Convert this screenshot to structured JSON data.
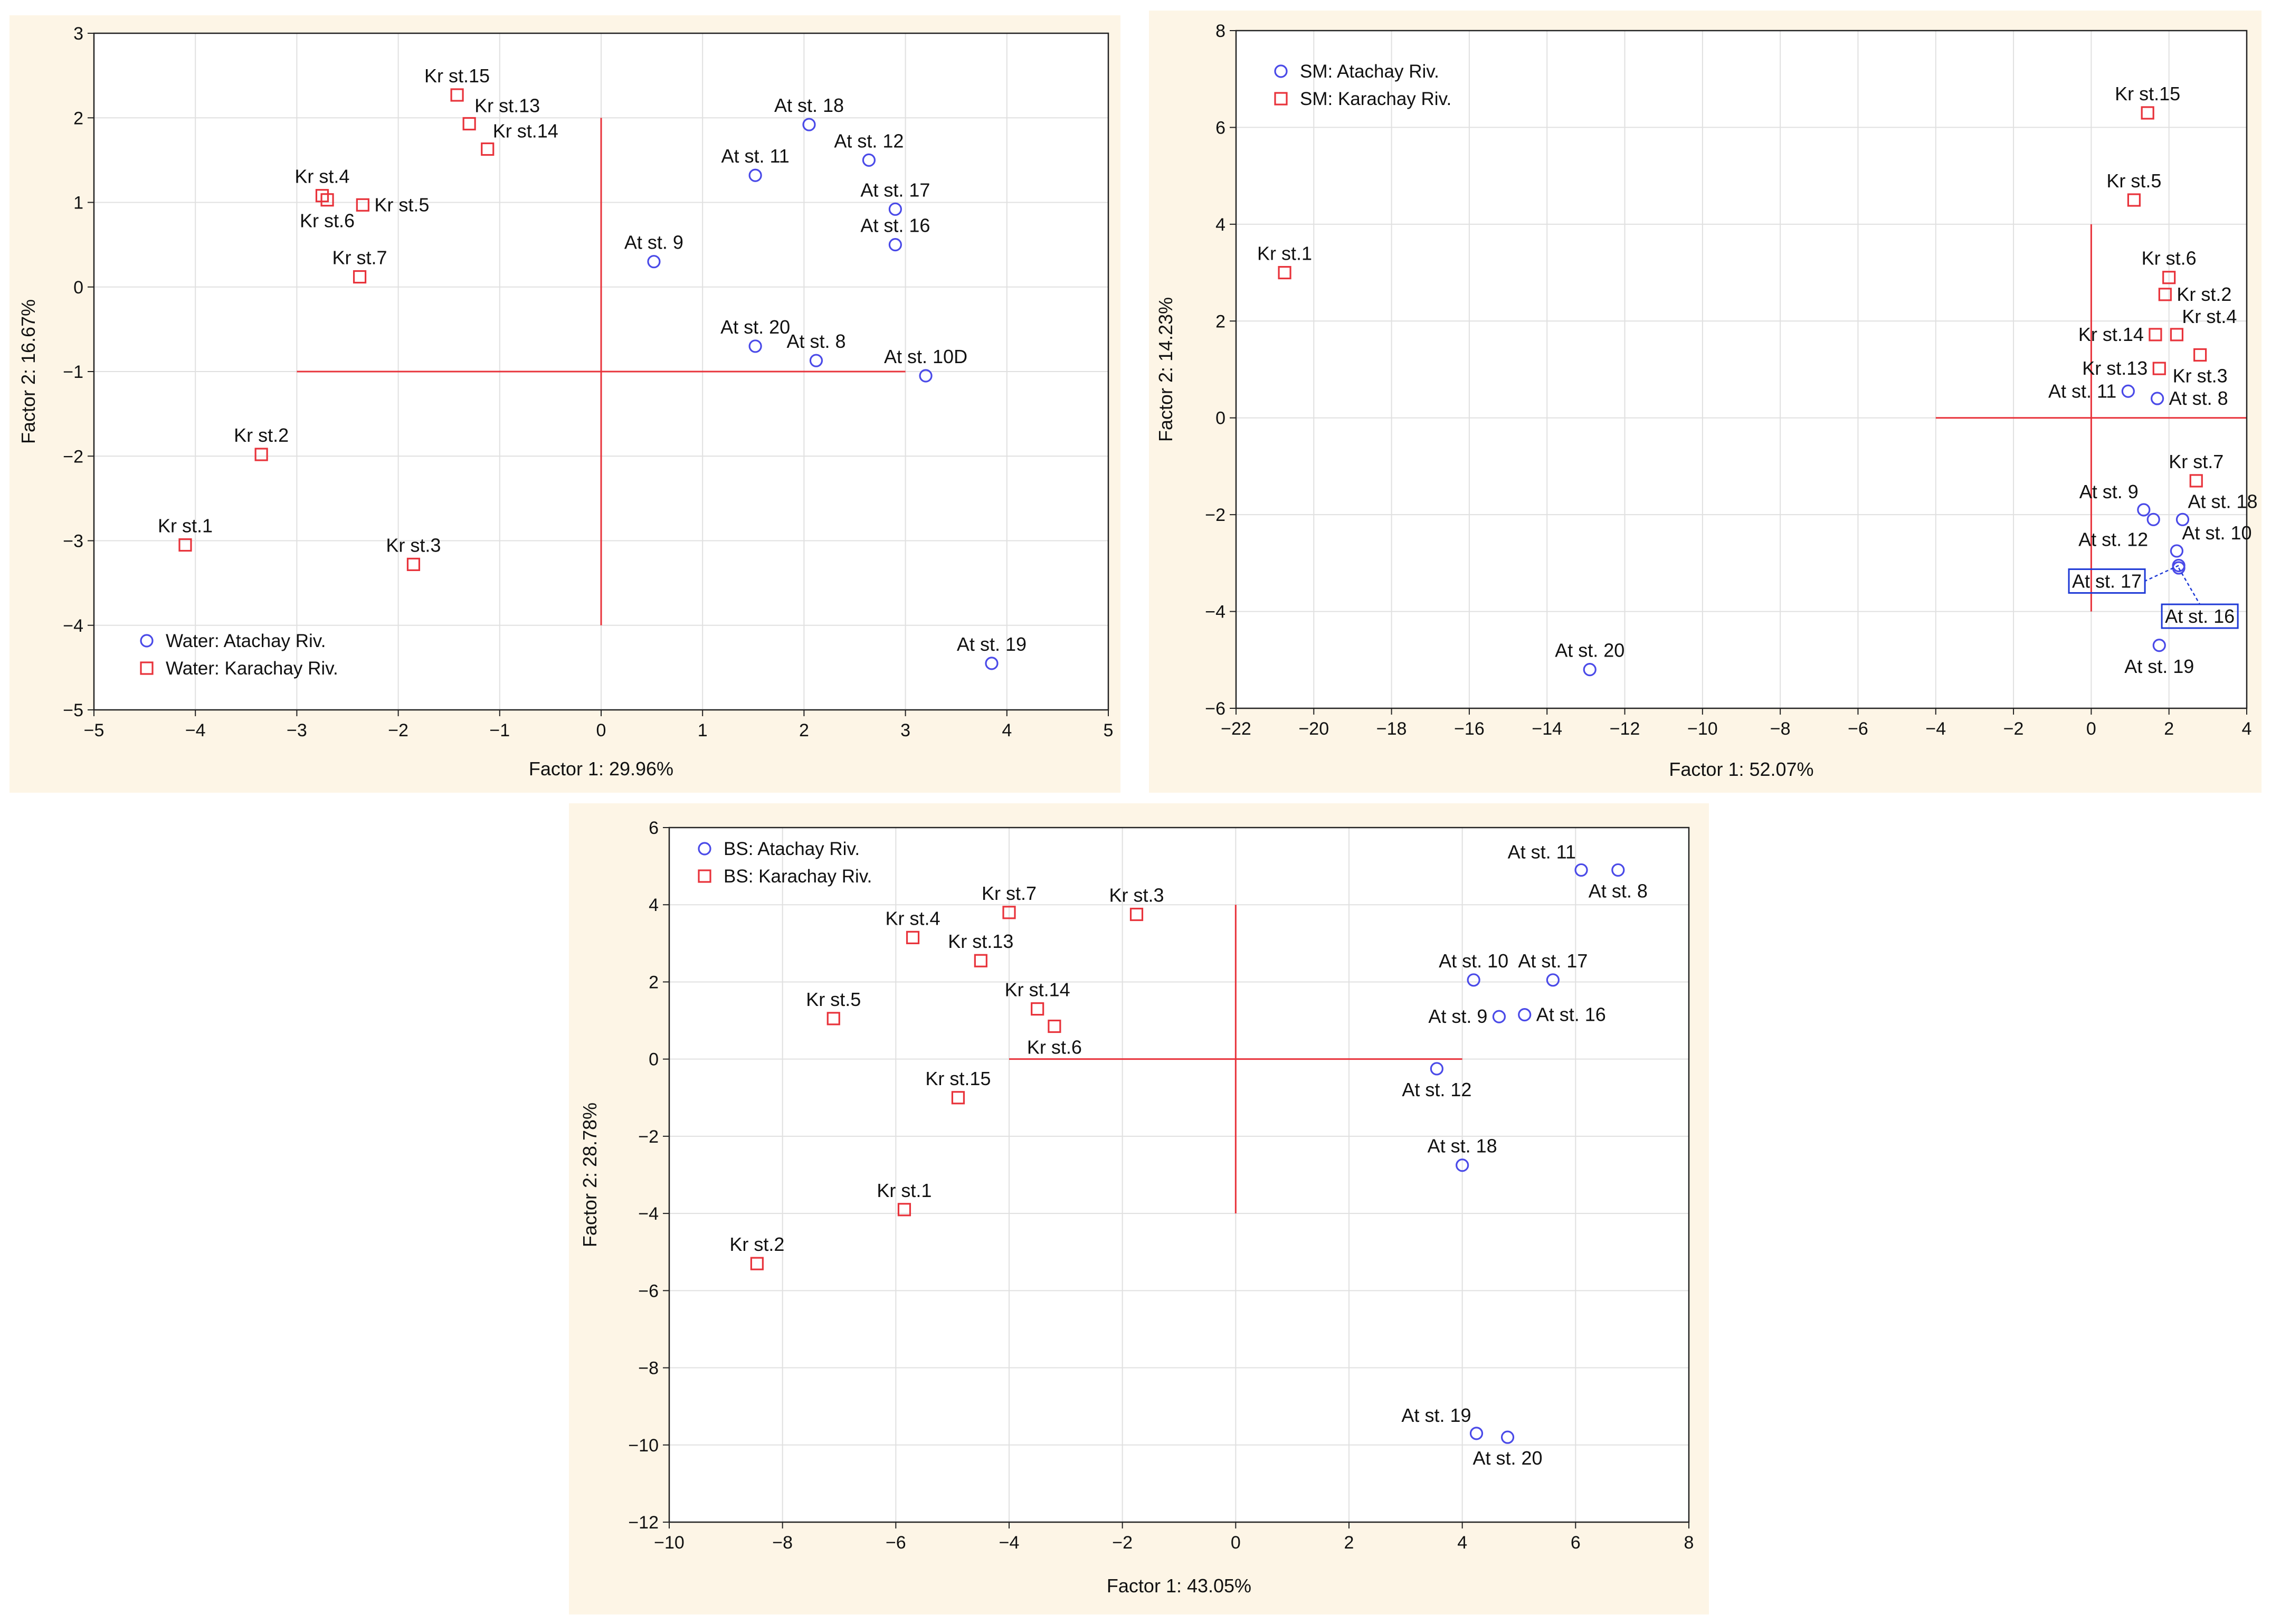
{
  "colors": {
    "panel_bg": "#fdf5e6",
    "plot_bg": "#ffffff",
    "frame": "#222222",
    "grid": "#e0e0e0",
    "center_lines": "#e8333b",
    "atachay": "#4a4ae8",
    "karachay": "#e8333b",
    "highlight": "#1f3ad6"
  },
  "chart_data": [
    {
      "type": "scatter",
      "id": "water",
      "title": "",
      "xlabel": "Factor 1: 29.96%",
      "ylabel": "Factor 2: 16.67%",
      "xlim": [
        -5,
        5
      ],
      "ylim": [
        -5,
        3
      ],
      "xticks": [
        -5,
        -4,
        -3,
        -2,
        -1,
        0,
        1,
        2,
        3,
        4,
        5
      ],
      "yticks": [
        -5,
        -4,
        -3,
        -2,
        -1,
        0,
        1,
        2,
        3
      ],
      "tick_labels_x": [
        "−5",
        "−4",
        "−3",
        "−2",
        "−1",
        "0",
        "1",
        "2",
        "3",
        "4",
        "5"
      ],
      "tick_labels_y": [
        "−5",
        "−4",
        "−3",
        "−2",
        "−1",
        "0",
        "1",
        "2",
        "3"
      ],
      "grid": true,
      "center_lines": {
        "h": {
          "y": -1,
          "x_from": -3,
          "x_to": 3
        },
        "v": {
          "x": 0,
          "y_from": -4,
          "y_to": 2
        }
      },
      "legend_position": "bottom-left",
      "series": [
        {
          "name": "Water: Atachay Riv.",
          "marker": "circle",
          "color_key": "atachay",
          "points": [
            {
              "label": "At st. 18",
              "x": 2.05,
              "y": 1.92,
              "pos": "above"
            },
            {
              "label": "At st. 11",
              "x": 1.52,
              "y": 1.32,
              "pos": "above"
            },
            {
              "label": "At st. 12",
              "x": 2.64,
              "y": 1.5,
              "pos": "above"
            },
            {
              "label": "At st. 17",
              "x": 2.9,
              "y": 0.92,
              "pos": "above"
            },
            {
              "label": "At st. 16",
              "x": 2.9,
              "y": 0.5,
              "pos": "above"
            },
            {
              "label": "At st. 9",
              "x": 0.52,
              "y": 0.3,
              "pos": "above"
            },
            {
              "label": "At st. 20",
              "x": 1.52,
              "y": -0.7,
              "pos": "above"
            },
            {
              "label": "At st. 8",
              "x": 2.12,
              "y": -0.87,
              "pos": "above"
            },
            {
              "label": "At st. 10D",
              "x": 3.2,
              "y": -1.05,
              "pos": "above"
            },
            {
              "label": "At st. 19",
              "x": 3.85,
              "y": -4.45,
              "pos": "above"
            }
          ]
        },
        {
          "name": "Water: Karachay Riv.",
          "marker": "square",
          "color_key": "karachay",
          "points": [
            {
              "label": "Kr st.15",
              "x": -1.42,
              "y": 2.27,
              "pos": "above"
            },
            {
              "label": "Kr st.13",
              "x": -1.3,
              "y": 1.93,
              "pos": "above-right"
            },
            {
              "label": "Kr st.14",
              "x": -1.12,
              "y": 1.63,
              "pos": "above-right"
            },
            {
              "label": "Kr st.4",
              "x": -2.75,
              "y": 1.08,
              "pos": "above"
            },
            {
              "label": "Kr st.6",
              "x": -2.7,
              "y": 1.03,
              "pos": "below"
            },
            {
              "label": "Kr st.5",
              "x": -2.35,
              "y": 0.97,
              "pos": "right"
            },
            {
              "label": "Kr st.7",
              "x": -2.38,
              "y": 0.12,
              "pos": "above"
            },
            {
              "label": "Kr st.2",
              "x": -3.35,
              "y": -1.98,
              "pos": "above"
            },
            {
              "label": "Kr st.1",
              "x": -4.1,
              "y": -3.05,
              "pos": "above"
            },
            {
              "label": "Kr st.3",
              "x": -1.85,
              "y": -3.28,
              "pos": "above"
            }
          ]
        }
      ]
    },
    {
      "type": "scatter",
      "id": "sm",
      "title": "",
      "xlabel": "Factor 1: 52.07%",
      "ylabel": "Factor 2: 14.23%",
      "xlim": [
        -22,
        4
      ],
      "ylim": [
        -6,
        8
      ],
      "xticks": [
        -22,
        -20,
        -18,
        -16,
        -14,
        -12,
        -10,
        -8,
        -6,
        -4,
        -2,
        0,
        2,
        4
      ],
      "yticks": [
        -6,
        -4,
        -2,
        0,
        2,
        4,
        6,
        8
      ],
      "tick_labels_x": [
        "−22",
        "−20",
        "−18",
        "−16",
        "−14",
        "−12",
        "−10",
        "−8",
        "−6",
        "−4",
        "−2",
        "0",
        "2",
        "4"
      ],
      "tick_labels_y": [
        "−6",
        "−4",
        "−2",
        "0",
        "2",
        "4",
        "6",
        "8"
      ],
      "grid": true,
      "center_lines": {
        "h": {
          "y": 0,
          "x_from": -4,
          "x_to": 4
        },
        "v": {
          "x": 0,
          "y_from": -4,
          "y_to": 4
        }
      },
      "legend_position": "top-left",
      "series": [
        {
          "name": "SM: Atachay Riv.",
          "marker": "circle",
          "color_key": "atachay",
          "points": [
            {
              "label": "At st. 11",
              "x": 0.95,
              "y": 0.55,
              "pos": "left"
            },
            {
              "label": "At st. 8",
              "x": 1.7,
              "y": 0.4,
              "pos": "right"
            },
            {
              "label": "At st. 9",
              "x": 1.35,
              "y": -1.9,
              "pos": "above-left"
            },
            {
              "label": "At st. 12",
              "x": 1.6,
              "y": -2.1,
              "pos": "below-left"
            },
            {
              "label": "At st. 18",
              "x": 2.35,
              "y": -2.1,
              "pos": "above-right"
            },
            {
              "label": "At st. 10",
              "x": 2.2,
              "y": -2.75,
              "pos": "above-right"
            },
            {
              "label": "At st. 17",
              "x": 2.25,
              "y": -3.05,
              "pos": "boxed-left"
            },
            {
              "label": "At st. 16",
              "x": 2.25,
              "y": -3.1,
              "pos": "boxed-below-right"
            },
            {
              "label": "At st. 19",
              "x": 1.75,
              "y": -4.7,
              "pos": "below"
            },
            {
              "label": "At st. 20",
              "x": -12.9,
              "y": -5.2,
              "pos": "above"
            }
          ]
        },
        {
          "name": "SM: Karachay Riv.",
          "marker": "square",
          "color_key": "karachay",
          "points": [
            {
              "label": "Kr st.15",
              "x": 1.45,
              "y": 6.3,
              "pos": "above"
            },
            {
              "label": "Kr st.5",
              "x": 1.1,
              "y": 4.5,
              "pos": "above"
            },
            {
              "label": "Kr st.6",
              "x": 2.0,
              "y": 2.9,
              "pos": "above"
            },
            {
              "label": "Kr st.2",
              "x": 1.9,
              "y": 2.55,
              "pos": "right"
            },
            {
              "label": "Kr st.4",
              "x": 2.2,
              "y": 1.72,
              "pos": "above-right"
            },
            {
              "label": "Kr st.14",
              "x": 1.65,
              "y": 1.72,
              "pos": "left"
            },
            {
              "label": "Kr st.13",
              "x": 1.75,
              "y": 1.02,
              "pos": "left"
            },
            {
              "label": "Kr st.3",
              "x": 2.8,
              "y": 1.3,
              "pos": "below"
            },
            {
              "label": "Kr st.7",
              "x": 2.7,
              "y": -1.3,
              "pos": "above"
            },
            {
              "label": "Kr st.1",
              "x": -20.75,
              "y": 3.0,
              "pos": "above"
            }
          ]
        }
      ]
    },
    {
      "type": "scatter",
      "id": "bs",
      "title": "",
      "xlabel": "Factor 1: 43.05%",
      "ylabel": "Factor 2: 28.78%",
      "xlim": [
        -10,
        8
      ],
      "ylim": [
        -12,
        6
      ],
      "xticks": [
        -10,
        -8,
        -6,
        -4,
        -2,
        0,
        2,
        4,
        6,
        8
      ],
      "yticks": [
        -12,
        -10,
        -8,
        -6,
        -4,
        -2,
        0,
        2,
        4,
        6
      ],
      "tick_labels_x": [
        "−10",
        "−8",
        "−6",
        "−4",
        "−2",
        "0",
        "2",
        "4",
        "6",
        "8"
      ],
      "tick_labels_y": [
        "−12",
        "−10",
        "−8",
        "−6",
        "−4",
        "−2",
        "0",
        "2",
        "4",
        "6"
      ],
      "grid": true,
      "center_lines": {
        "h": {
          "y": 0,
          "x_from": -4,
          "x_to": 4
        },
        "v": {
          "x": 0,
          "y_from": -4,
          "y_to": 4
        }
      },
      "legend_position": "top-left",
      "series": [
        {
          "name": "BS: Atachay Riv.",
          "marker": "circle",
          "color_key": "atachay",
          "points": [
            {
              "label": "At st. 11",
              "x": 6.1,
              "y": 4.9,
              "pos": "above-left"
            },
            {
              "label": "At st. 8",
              "x": 6.75,
              "y": 4.9,
              "pos": "below"
            },
            {
              "label": "At st. 10",
              "x": 4.2,
              "y": 2.05,
              "pos": "above"
            },
            {
              "label": "At st. 17",
              "x": 5.6,
              "y": 2.05,
              "pos": "above"
            },
            {
              "label": "At st. 9",
              "x": 4.65,
              "y": 1.1,
              "pos": "left"
            },
            {
              "label": "At st. 16",
              "x": 5.1,
              "y": 1.15,
              "pos": "right"
            },
            {
              "label": "At st. 12",
              "x": 3.55,
              "y": -0.25,
              "pos": "below"
            },
            {
              "label": "At st. 18",
              "x": 4.0,
              "y": -2.75,
              "pos": "above"
            },
            {
              "label": "At st. 19",
              "x": 4.25,
              "y": -9.7,
              "pos": "above-left"
            },
            {
              "label": "At st. 20",
              "x": 4.8,
              "y": -9.8,
              "pos": "below"
            }
          ]
        },
        {
          "name": "BS: Karachay Riv.",
          "marker": "square",
          "color_key": "karachay",
          "points": [
            {
              "label": "Kr st.7",
              "x": -4.0,
              "y": 3.8,
              "pos": "above"
            },
            {
              "label": "Kr st.3",
              "x": -1.75,
              "y": 3.75,
              "pos": "above"
            },
            {
              "label": "Kr st.4",
              "x": -5.7,
              "y": 3.15,
              "pos": "above"
            },
            {
              "label": "Kr st.13",
              "x": -4.5,
              "y": 2.55,
              "pos": "above"
            },
            {
              "label": "Kr st.5",
              "x": -7.1,
              "y": 1.05,
              "pos": "above"
            },
            {
              "label": "Kr st.14",
              "x": -3.5,
              "y": 1.3,
              "pos": "above"
            },
            {
              "label": "Kr st.6",
              "x": -3.2,
              "y": 0.85,
              "pos": "below"
            },
            {
              "label": "Kr st.15",
              "x": -4.9,
              "y": -1.0,
              "pos": "above"
            },
            {
              "label": "Kr st.1",
              "x": -5.85,
              "y": -3.9,
              "pos": "above"
            },
            {
              "label": "Kr st.2",
              "x": -8.45,
              "y": -5.3,
              "pos": "above"
            }
          ]
        }
      ]
    }
  ]
}
